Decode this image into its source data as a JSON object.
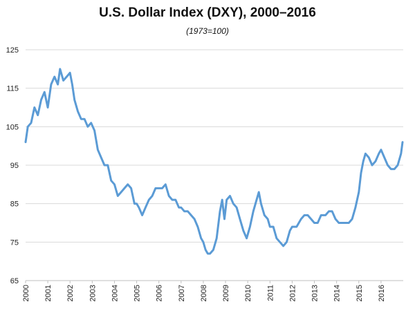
{
  "chart_data": {
    "type": "line",
    "title": "U.S. Dollar Index (DXY), 2000–2016",
    "subtitle": "(1973=100)",
    "xlabel": "",
    "ylabel": "",
    "ylim": [
      65,
      125
    ],
    "yticks": [
      "65",
      "75",
      "85",
      "95",
      "105",
      "115",
      "125"
    ],
    "xlim": [
      2000,
      2017
    ],
    "xticks": [
      "2000",
      "2001",
      "2002",
      "2003",
      "2004",
      "2005",
      "2006",
      "2007",
      "2008",
      "2009",
      "2010",
      "2011",
      "2012",
      "2013",
      "2014",
      "2015",
      "2016"
    ],
    "grid": "horizontal",
    "color": "#5B9BD5",
    "series": [
      {
        "x": [
          2000.0,
          2000.1,
          2000.25,
          2000.4,
          2000.55,
          2000.7,
          2000.85,
          2001.0,
          2001.15,
          2001.3,
          2001.45,
          2001.55,
          2001.7,
          2001.85,
          2002.0,
          2002.1,
          2002.2,
          2002.35,
          2002.5,
          2002.65,
          2002.8,
          2002.95,
          2003.1,
          2003.25,
          2003.4,
          2003.55,
          2003.7,
          2003.85,
          2004.0,
          2004.15,
          2004.3,
          2004.45,
          2004.6,
          2004.75,
          2004.9,
          2005.0,
          2005.1,
          2005.25,
          2005.4,
          2005.55,
          2005.7,
          2005.85,
          2006.0,
          2006.15,
          2006.3,
          2006.45,
          2006.6,
          2006.75,
          2006.9,
          2007.0,
          2007.15,
          2007.3,
          2007.45,
          2007.6,
          2007.75,
          2007.9,
          2008.0,
          2008.1,
          2008.2,
          2008.3,
          2008.45,
          2008.6,
          2008.75,
          2008.85,
          2008.95,
          2009.05,
          2009.2,
          2009.35,
          2009.5,
          2009.65,
          2009.8,
          2009.95,
          2010.1,
          2010.25,
          2010.4,
          2010.5,
          2010.6,
          2010.75,
          2010.9,
          2011.0,
          2011.15,
          2011.3,
          2011.45,
          2011.6,
          2011.75,
          2011.9,
          2012.0,
          2012.2,
          2012.4,
          2012.55,
          2012.7,
          2012.85,
          2013.0,
          2013.15,
          2013.3,
          2013.5,
          2013.65,
          2013.8,
          2013.95,
          2014.1,
          2014.25,
          2014.4,
          2014.55,
          2014.7,
          2014.85,
          2015.0,
          2015.1,
          2015.2,
          2015.3,
          2015.45,
          2015.6,
          2015.75,
          2015.9,
          2016.0,
          2016.15,
          2016.3,
          2016.45,
          2016.6,
          2016.75,
          2016.9,
          2016.97
        ],
        "y": [
          101,
          105,
          106,
          110,
          108,
          112,
          114,
          110,
          116,
          118,
          116,
          120,
          117,
          118,
          119,
          116,
          112,
          109,
          107,
          107,
          105,
          106,
          104,
          99,
          97,
          95,
          95,
          91,
          90,
          87,
          88,
          89,
          90,
          89,
          85,
          85,
          84,
          82,
          84,
          86,
          87,
          89,
          89,
          89,
          90,
          87,
          86,
          86,
          84,
          84,
          83,
          83,
          82,
          81,
          79,
          76,
          75,
          73,
          72,
          72,
          73,
          76,
          83,
          86,
          81,
          86,
          87,
          85,
          84,
          81,
          78,
          76,
          79,
          83,
          86,
          88,
          85,
          82,
          81,
          79,
          79,
          76,
          75,
          74,
          75,
          78,
          79,
          79,
          81,
          82,
          82,
          81,
          80,
          80,
          82,
          82,
          83,
          83,
          81,
          80,
          80,
          80,
          80,
          81,
          84,
          88,
          93,
          96,
          98,
          97,
          95,
          96,
          98,
          99,
          97,
          95,
          94,
          94,
          95,
          98,
          101
        ]
      }
    ]
  }
}
